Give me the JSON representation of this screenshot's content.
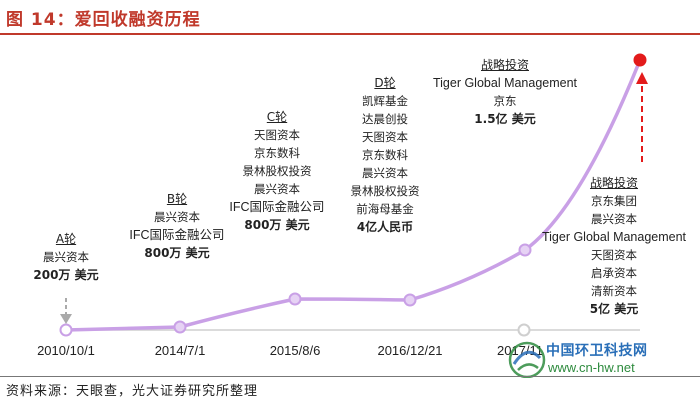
{
  "title": "图 14：爱回收融资历程",
  "source": "资料来源：天眼查，光大证券研究所整理",
  "watermark": {
    "site_name": "中国环卫科技网",
    "url": "www.cn-hw.net"
  },
  "colors": {
    "title_red": "#c0392b",
    "line_purple": "#c9a0e6",
    "marker_red": "#e31b1b",
    "arrow_gray": "#aaaaaa"
  },
  "timeline": {
    "dates": [
      "2010/10/1",
      "2014/7/1",
      "2015/8/6",
      "2016/12/21",
      "2017/11"
    ],
    "rounds": [
      {
        "name": "A轮",
        "investors": [
          "晨兴资本"
        ],
        "amount": "200万 美元"
      },
      {
        "name": "B轮",
        "investors": [
          "晨兴资本",
          "IFC国际金融公司"
        ],
        "amount": "800万 美元"
      },
      {
        "name": "C轮",
        "investors": [
          "天图资本",
          "京东数科",
          "景林股权投资",
          "晨兴资本",
          "IFC国际金融公司"
        ],
        "amount": "800万 美元"
      },
      {
        "name": "D轮",
        "investors": [
          "凯辉基金",
          "达晨创投",
          "天图资本",
          "京东数科",
          "晨兴资本",
          "景林股权投资",
          "前海母基金"
        ],
        "amount": "4亿人民币"
      },
      {
        "name": "战略投资",
        "investors": [
          "京东集团",
          "晨兴资本",
          "Tiger Global Management",
          "天图资本",
          "启承资本",
          "清新资本"
        ],
        "amount": "5亿 美元"
      },
      {
        "name": "战略投资",
        "investors": [
          "Tiger Global Management",
          "京东"
        ],
        "amount": "1.5亿 美元"
      }
    ]
  }
}
